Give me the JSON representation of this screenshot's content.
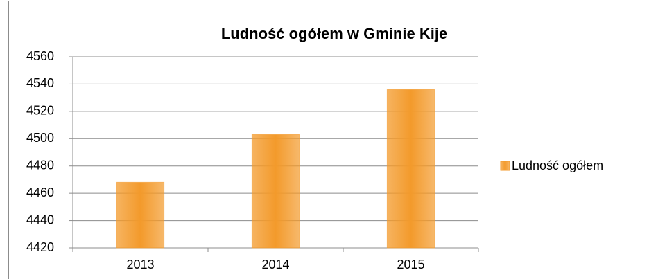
{
  "chart_data": {
    "type": "bar",
    "title": "Ludność ogółem w Gminie Kije",
    "categories": [
      "2013",
      "2014",
      "2015"
    ],
    "series": [
      {
        "name": "Ludność ogółem",
        "color": "#f39a2b",
        "values": [
          4468,
          4503,
          4536
        ]
      }
    ],
    "ylim": [
      4420,
      4560
    ],
    "yticks": [
      4420,
      4440,
      4460,
      4480,
      4500,
      4520,
      4540,
      4560
    ],
    "grid": true,
    "legend": "right"
  }
}
